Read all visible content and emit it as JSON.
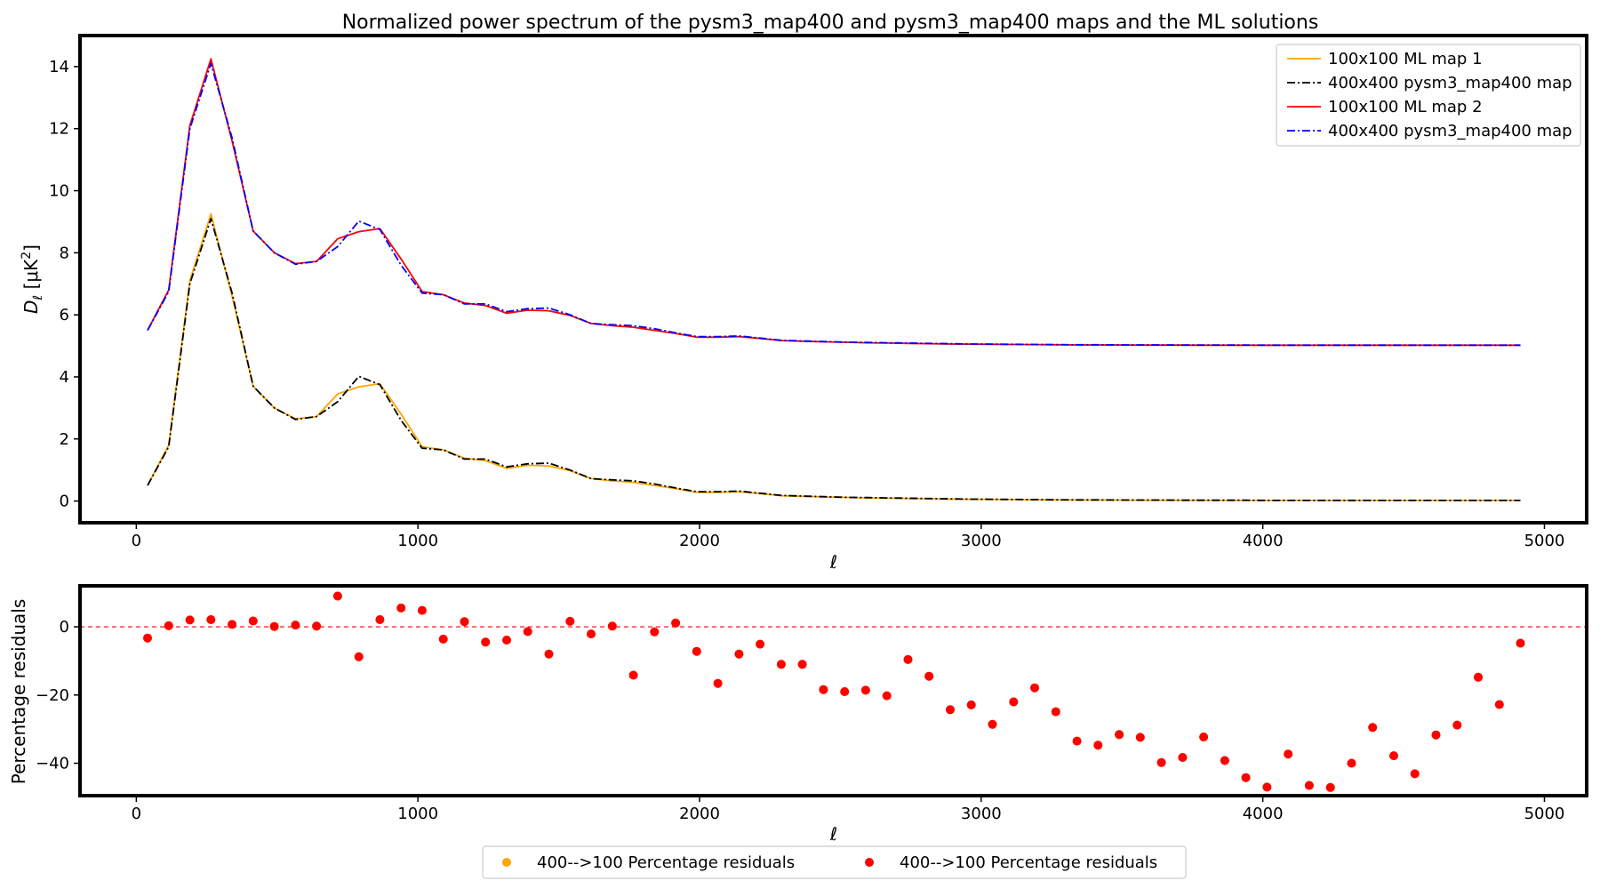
{
  "colors": {
    "orange": "#ffa500",
    "black": "#000000",
    "red": "#ff0000",
    "blue": "#0000ff"
  },
  "chart_data": [
    {
      "type": "line",
      "title": "Normalized power spectrum of the pysm3_map400 and pysm3_map400 maps and the ML solutions",
      "xlabel": "ℓ",
      "ylabel_main": "D",
      "ylabel_sub": "ℓ",
      "ylabel_unit_a": " [μK",
      "ylabel_unit_sup": "2",
      "ylabel_unit_b": "]",
      "xlim": [
        -200,
        5150
      ],
      "ylim": [
        -0.7,
        15.0
      ],
      "xticks": [
        0,
        1000,
        2000,
        3000,
        4000,
        5000
      ],
      "yticks": [
        0,
        2,
        4,
        6,
        8,
        10,
        12,
        14
      ],
      "legend_position": "upper right",
      "x": [
        40,
        115,
        190,
        265,
        340,
        415,
        490,
        565,
        640,
        715,
        790,
        865,
        940,
        1015,
        1090,
        1165,
        1240,
        1315,
        1390,
        1465,
        1540,
        1615,
        1690,
        1765,
        1840,
        1915,
        1990,
        2065,
        2140,
        2215,
        2290,
        2365,
        2440,
        2515,
        2590,
        2665,
        2740,
        2815,
        2890,
        2965,
        3040,
        3115,
        3190,
        3265,
        3340,
        3415,
        3490,
        3565,
        3640,
        3715,
        3790,
        3865,
        3940,
        4015,
        4090,
        4165,
        4240,
        4315,
        4390,
        4465,
        4540,
        4615,
        4690,
        4765,
        4840,
        4915
      ],
      "series": [
        {
          "name": "100x100 ML map 1",
          "color": "#ffa500",
          "style": "solid",
          "values": [
            0.5,
            1.8,
            7.1,
            9.25,
            6.6,
            3.7,
            3.0,
            2.65,
            2.72,
            3.45,
            3.68,
            3.78,
            2.8,
            1.75,
            1.65,
            1.38,
            1.3,
            1.05,
            1.15,
            1.13,
            0.98,
            0.72,
            0.65,
            0.6,
            0.5,
            0.4,
            0.28,
            0.28,
            0.3,
            0.24,
            0.17,
            0.15,
            0.13,
            0.12,
            0.1,
            0.09,
            0.08,
            0.07,
            0.06,
            0.055,
            0.05,
            0.045,
            0.04,
            0.035,
            0.03,
            0.03,
            0.03,
            0.025,
            0.025,
            0.025,
            0.02,
            0.02,
            0.02,
            0.02,
            0.02,
            0.02,
            0.02,
            0.02,
            0.02,
            0.02,
            0.02,
            0.02,
            0.02,
            0.02,
            0.02,
            0.02
          ]
        },
        {
          "name": "400x400 pysm3_map400 map",
          "color": "#000000",
          "style": "dashdot",
          "values": [
            0.5,
            1.75,
            7.0,
            9.1,
            6.7,
            3.7,
            3.0,
            2.63,
            2.72,
            3.2,
            4.02,
            3.75,
            2.6,
            1.7,
            1.65,
            1.35,
            1.35,
            1.1,
            1.2,
            1.22,
            1.0,
            0.72,
            0.68,
            0.65,
            0.55,
            0.42,
            0.3,
            0.3,
            0.32,
            0.25,
            0.18,
            0.16,
            0.14,
            0.12,
            0.11,
            0.1,
            0.09,
            0.08,
            0.07,
            0.06,
            0.055,
            0.05,
            0.045,
            0.04,
            0.035,
            0.035,
            0.03,
            0.03,
            0.03,
            0.025,
            0.025,
            0.025,
            0.025,
            0.02,
            0.02,
            0.02,
            0.02,
            0.02,
            0.02,
            0.02,
            0.02,
            0.02,
            0.02,
            0.02,
            0.02,
            0.02
          ]
        },
        {
          "name": "100x100 ML map 2",
          "color": "#ff0000",
          "style": "solid",
          "values": [
            5.5,
            6.8,
            12.1,
            14.25,
            11.6,
            8.7,
            8.0,
            7.65,
            7.72,
            8.45,
            8.68,
            8.78,
            7.8,
            6.75,
            6.65,
            6.38,
            6.3,
            6.05,
            6.15,
            6.13,
            5.98,
            5.72,
            5.65,
            5.6,
            5.5,
            5.4,
            5.28,
            5.28,
            5.3,
            5.24,
            5.17,
            5.15,
            5.13,
            5.12,
            5.1,
            5.09,
            5.08,
            5.07,
            5.06,
            5.055,
            5.05,
            5.045,
            5.04,
            5.035,
            5.03,
            5.03,
            5.03,
            5.025,
            5.025,
            5.025,
            5.02,
            5.02,
            5.02,
            5.02,
            5.02,
            5.02,
            5.02,
            5.02,
            5.02,
            5.02,
            5.02,
            5.02,
            5.02,
            5.02,
            5.02,
            5.02
          ]
        },
        {
          "name": "400x400 pysm3_map400 map",
          "color": "#0000ff",
          "style": "dashdot",
          "values": [
            5.5,
            6.75,
            12.0,
            14.1,
            11.7,
            8.7,
            8.0,
            7.63,
            7.72,
            8.2,
            9.02,
            8.75,
            7.6,
            6.7,
            6.65,
            6.35,
            6.35,
            6.1,
            6.2,
            6.22,
            6.0,
            5.72,
            5.68,
            5.65,
            5.55,
            5.42,
            5.3,
            5.3,
            5.32,
            5.25,
            5.18,
            5.16,
            5.14,
            5.12,
            5.11,
            5.1,
            5.09,
            5.08,
            5.07,
            5.06,
            5.055,
            5.05,
            5.045,
            5.04,
            5.035,
            5.035,
            5.03,
            5.03,
            5.03,
            5.025,
            5.025,
            5.025,
            5.025,
            5.02,
            5.02,
            5.02,
            5.02,
            5.02,
            5.02,
            5.02,
            5.02,
            5.02,
            5.02,
            5.02,
            5.02,
            5.02
          ]
        }
      ]
    },
    {
      "type": "scatter",
      "xlabel": "ℓ",
      "ylabel": "Percentage residuals",
      "xlim": [
        -200,
        5150
      ],
      "ylim": [
        -49.5,
        12.0
      ],
      "xticks": [
        0,
        1000,
        2000,
        3000,
        4000,
        5000
      ],
      "yticks": [
        0,
        -20,
        -40
      ],
      "reference_line": 0,
      "legend_position": "below plot",
      "x": [
        40,
        115,
        190,
        265,
        340,
        415,
        490,
        565,
        640,
        715,
        790,
        865,
        940,
        1015,
        1090,
        1165,
        1240,
        1315,
        1390,
        1465,
        1540,
        1615,
        1690,
        1765,
        1840,
        1915,
        1990,
        2065,
        2140,
        2215,
        2290,
        2365,
        2440,
        2515,
        2590,
        2665,
        2740,
        2815,
        2890,
        2965,
        3040,
        3115,
        3190,
        3265,
        3340,
        3415,
        3490,
        3565,
        3640,
        3715,
        3790,
        3865,
        3940,
        4015,
        4090,
        4165,
        4240,
        4315,
        4390,
        4465,
        4540,
        4615,
        4690,
        4765,
        4840,
        4915
      ],
      "series": [
        {
          "name": "400-->100 Percentage residuals",
          "color": "#ffa500",
          "values": [
            -3.3,
            0.3,
            2.0,
            2.1,
            0.7,
            1.7,
            0.1,
            0.5,
            0.2,
            9.0,
            -8.8,
            2.1,
            5.5,
            4.8,
            -3.6,
            1.5,
            -4.5,
            -3.9,
            -1.4,
            -8.0,
            1.6,
            -2.1,
            0.2,
            -14.2,
            -1.5,
            1.1,
            -7.2,
            -16.6,
            -8.0,
            -5.1,
            -11.0,
            -11.0,
            -18.4,
            -19.0,
            -18.6,
            -20.2,
            -9.6,
            -14.5,
            -24.3,
            -22.9,
            -28.6,
            -22.0,
            -17.9,
            -24.9,
            -33.5,
            -34.7,
            -31.6,
            -32.4,
            -39.8,
            -38.3,
            -32.3,
            -39.2,
            -44.2,
            -47.0,
            -37.3,
            -46.5,
            -47.1,
            -40.0,
            -29.5,
            -37.8,
            -43.1,
            -31.7,
            -28.8,
            -14.8,
            -22.8,
            -4.8
          ]
        },
        {
          "name": "400-->100 Percentage residuals",
          "color": "#ff0000",
          "values": [
            -3.3,
            0.3,
            2.0,
            2.1,
            0.7,
            1.7,
            0.1,
            0.5,
            0.2,
            9.0,
            -8.8,
            2.1,
            5.5,
            4.8,
            -3.6,
            1.5,
            -4.5,
            -3.9,
            -1.4,
            -8.0,
            1.6,
            -2.1,
            0.2,
            -14.2,
            -1.5,
            1.1,
            -7.2,
            -16.6,
            -8.0,
            -5.1,
            -11.0,
            -11.0,
            -18.4,
            -19.0,
            -18.6,
            -20.2,
            -9.6,
            -14.5,
            -24.3,
            -22.9,
            -28.6,
            -22.0,
            -17.9,
            -24.9,
            -33.5,
            -34.7,
            -31.6,
            -32.4,
            -39.8,
            -38.3,
            -32.3,
            -39.2,
            -44.2,
            -47.0,
            -37.3,
            -46.5,
            -47.1,
            -40.0,
            -29.5,
            -37.8,
            -43.1,
            -31.7,
            -28.8,
            -14.8,
            -22.8,
            -4.8
          ]
        }
      ]
    }
  ]
}
